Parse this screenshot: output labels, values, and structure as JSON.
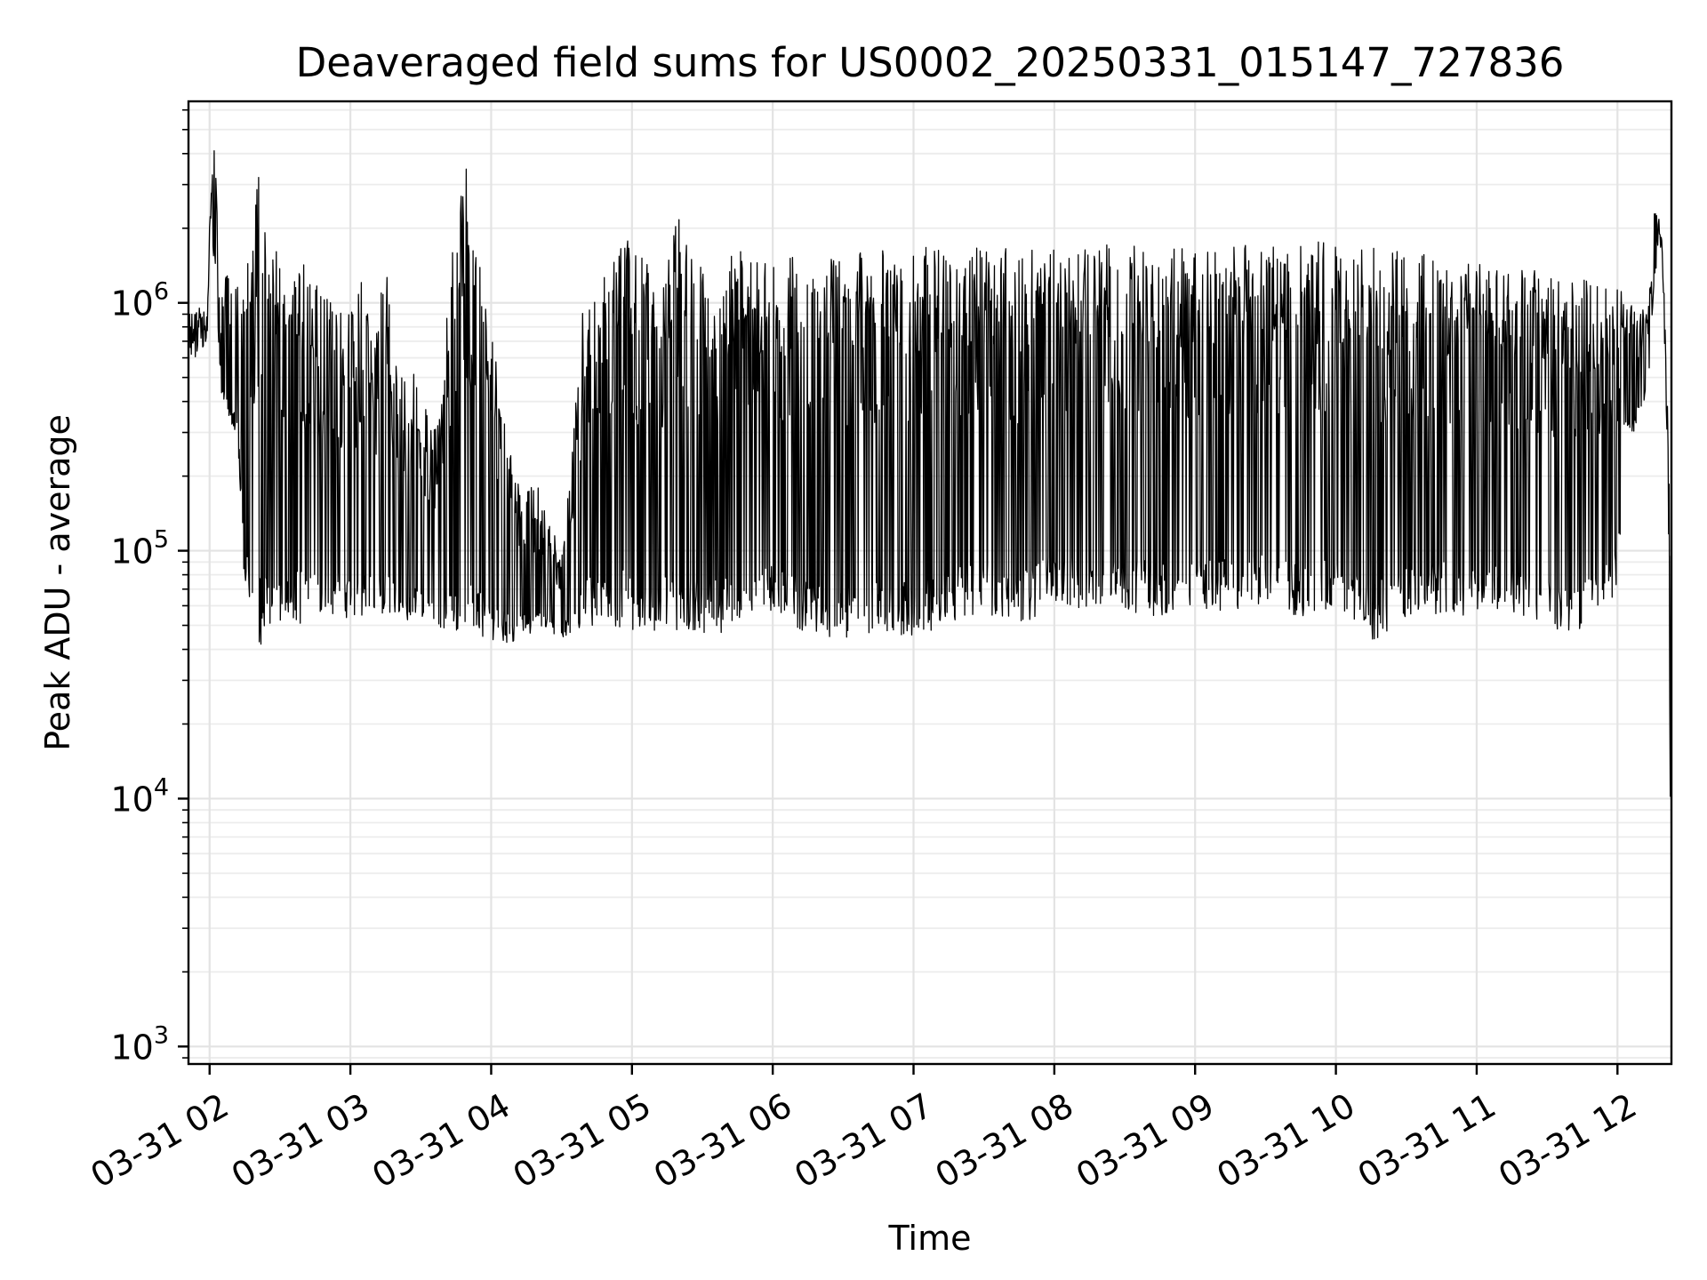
{
  "chart_data": {
    "type": "line",
    "title": "Deaveraged field sums for US0002_20250331_015147_727836",
    "xlabel": "Time",
    "ylabel": "Peak ADU - average",
    "yscale": "log",
    "xlim": [
      "03-31 01:51",
      "03-31 12:23"
    ],
    "ylim": [
      850,
      6500000
    ],
    "grid": true,
    "legend": "none",
    "line_color": "#000000",
    "x_ticks": [
      "03-31 02",
      "03-31 03",
      "03-31 04",
      "03-31 05",
      "03-31 06",
      "03-31 07",
      "03-31 08",
      "03-31 09",
      "03-31 10",
      "03-31 11",
      "03-31 12"
    ],
    "y_ticks": [
      {
        "value": 1000,
        "base": "10",
        "exp": "3"
      },
      {
        "value": 10000,
        "base": "10",
        "exp": "4"
      },
      {
        "value": 100000,
        "base": "10",
        "exp": "5"
      },
      {
        "value": 1000000,
        "base": "10",
        "exp": "6"
      }
    ],
    "series": [
      {
        "x": [
          "03-31 01:51",
          "03-31 01:55",
          "03-31 01:59",
          "03-31 02:00",
          "03-31 02:02",
          "03-31 02:05",
          "03-31 02:08",
          "03-31 02:12",
          "03-31 02:15",
          "03-31 02:18",
          "03-31 02:21",
          "03-31 02:25",
          "03-31 02:30",
          "03-31 02:35",
          "03-31 02:40",
          "03-31 02:45",
          "03-31 02:50",
          "03-31 02:55",
          "03-31 03:00",
          "03-31 03:05",
          "03-31 03:10",
          "03-31 03:15",
          "03-31 03:20",
          "03-31 03:25",
          "03-31 03:30",
          "03-31 03:35",
          "03-31 03:40",
          "03-31 03:45",
          "03-31 03:50",
          "03-31 03:55",
          "03-31 04:00",
          "03-31 04:10",
          "03-31 04:20",
          "03-31 04:30",
          "03-31 04:40",
          "03-31 04:45",
          "03-31 04:50",
          "03-31 04:55",
          "03-31 05:00",
          "03-31 05:05",
          "03-31 05:10",
          "03-31 05:15",
          "03-31 05:20",
          "03-31 05:25",
          "03-31 05:30",
          "03-31 05:40",
          "03-31 05:50",
          "03-31 06:00",
          "03-31 06:15",
          "03-31 06:30",
          "03-31 06:45",
          "03-31 07:00",
          "03-31 07:15",
          "03-31 07:30",
          "03-31 07:45",
          "03-31 08:00",
          "03-31 08:15",
          "03-31 08:30",
          "03-31 08:45",
          "03-31 09:00",
          "03-31 09:15",
          "03-31 09:30",
          "03-31 09:45",
          "03-31 10:00",
          "03-31 10:15",
          "03-31 10:30",
          "03-31 10:45",
          "03-31 11:00",
          "03-31 11:15",
          "03-31 11:30",
          "03-31 11:45",
          "03-31 12:00",
          "03-31 12:03",
          "03-31 12:06",
          "03-31 12:10",
          "03-31 12:13",
          "03-31 12:16",
          "03-31 12:19",
          "03-31 12:21",
          "03-31 12:22",
          "03-31 12:23"
        ],
        "floor": [
          550000,
          620000,
          700000,
          1700000,
          1500000,
          420000,
          330000,
          280000,
          68000,
          60000,
          40000,
          50000,
          48000,
          52000,
          50000,
          55000,
          52000,
          55000,
          50000,
          52000,
          53000,
          55000,
          48000,
          52000,
          53000,
          50000,
          45000,
          47000,
          44000,
          46000,
          42000,
          43000,
          47000,
          44000,
          49000,
          50000,
          52000,
          48000,
          47000,
          46000,
          44000,
          50000,
          44000,
          45000,
          45000,
          47000,
          48000,
          55000,
          46000,
          44000,
          47000,
          43000,
          52000,
          55000,
          48000,
          60000,
          55000,
          58000,
          53000,
          55000,
          56000,
          60000,
          54000,
          58000,
          42000,
          54000,
          56000,
          52000,
          55000,
          47000,
          48000,
          65000,
          300000,
          280000,
          350000,
          450000,
          1300000,
          1700000,
          300000,
          80000,
          1000
        ],
        "peak": [
          900000,
          1000000,
          950000,
          2100000,
          4500000,
          1100000,
          1500000,
          1600000,
          1450000,
          1550000,
          3700000,
          1400000,
          1800000,
          1500000,
          1450000,
          1200000,
          1100000,
          1000000,
          900000,
          1300000,
          700000,
          1500000,
          600000,
          550000,
          500000,
          300000,
          700000,
          2300000,
          3800000,
          1500000,
          800000,
          200000,
          180000,
          100000,
          1200000,
          1300000,
          1400000,
          2600000,
          1600000,
          1550000,
          1500000,
          1550000,
          2700000,
          1600000,
          1500000,
          1650000,
          1600000,
          1500000,
          1600000,
          1550000,
          1650000,
          1700000,
          1750000,
          1700000,
          1650000,
          1700000,
          1750000,
          1700000,
          1700000,
          1650000,
          1750000,
          1700000,
          1750000,
          1800000,
          1700000,
          1650000,
          1550000,
          1450000,
          1400000,
          1350000,
          1300000,
          1200000,
          1100000,
          1000000,
          950000,
          1000000,
          2700000,
          1900000,
          600000,
          250000,
          90000
        ]
      }
    ]
  }
}
